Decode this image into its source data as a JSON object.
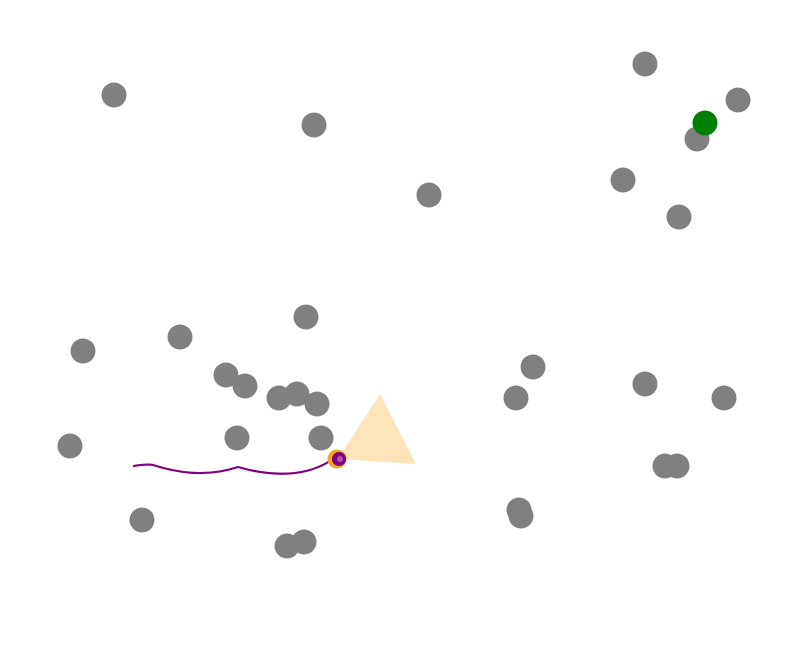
{
  "scene": {
    "background_color": "#ffffff",
    "obstacle_color": "#808080",
    "goal_color": "#008000",
    "agent_outline_color": "#f5a623",
    "agent_fill_color": "#800080",
    "trail_color": "#800080",
    "view_cone_color": "#ffdead"
  }
}
